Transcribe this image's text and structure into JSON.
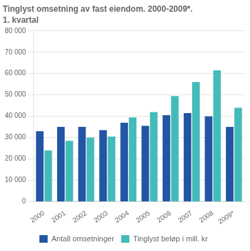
{
  "chart_data": {
    "type": "bar",
    "title": "Tinglyst omsetning av fast eiendom. 2000-2009*.",
    "subtitle": "1. kvartal",
    "categories": [
      "2000",
      "2001",
      "2002",
      "2003",
      "2004",
      "2005",
      "2006",
      "2007",
      "2008",
      "2009*"
    ],
    "series": [
      {
        "name": "Antall omsetninger",
        "color": "#2255A4",
        "values": [
          33000,
          35000,
          35000,
          33500,
          37000,
          35500,
          40500,
          41500,
          40000,
          35000
        ]
      },
      {
        "name": "Tinglyst beløp i mill. kr",
        "color": "#44BBBB",
        "values": [
          24000,
          28500,
          30000,
          30500,
          39500,
          42000,
          49500,
          56000,
          61500,
          44000
        ]
      }
    ],
    "ylim": [
      0,
      80000
    ],
    "yticks": [
      0,
      {
        "value": 10000,
        "label": "10 000"
      },
      {
        "value": 20000,
        "label": "20 000"
      },
      {
        "value": 30000,
        "label": "30 000"
      },
      {
        "value": 40000,
        "label": "40 000"
      },
      {
        "value": 50000,
        "label": "50 000"
      },
      {
        "value": 60000,
        "label": "60 000"
      },
      {
        "value": 70000,
        "label": "70 000"
      },
      {
        "value": 80000,
        "label": "80 000"
      }
    ],
    "grid": true,
    "legend": "bottom"
  }
}
